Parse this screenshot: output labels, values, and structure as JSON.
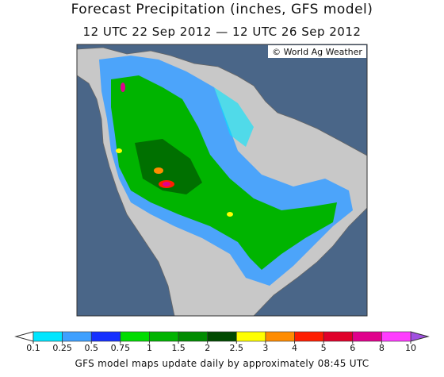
{
  "header": {
    "title": "Forecast Precipitation (inches, GFS model)",
    "subtitle": "12 UTC 22 Sep 2012 — 12 UTC 26 Sep 2012"
  },
  "map": {
    "credit": "© World Ag Weather"
  },
  "legend": {
    "ticks": [
      0.1,
      0.25,
      0.5,
      0.75,
      1,
      1.5,
      2,
      2.5,
      3,
      4,
      5,
      6,
      8,
      10
    ],
    "colors": [
      "#00e6ff",
      "#3ea0ff",
      "#1430ff",
      "#00dc00",
      "#00b400",
      "#008c00",
      "#004a00",
      "#ffff00",
      "#ff8c00",
      "#ff1e00",
      "#e0002a",
      "#e0008c",
      "#ff3cff"
    ],
    "under_color": "#ffffff",
    "over_color": "#a050e0"
  },
  "footer": {
    "text": "GFS model maps update daily by approximately 08:45 UTC"
  }
}
